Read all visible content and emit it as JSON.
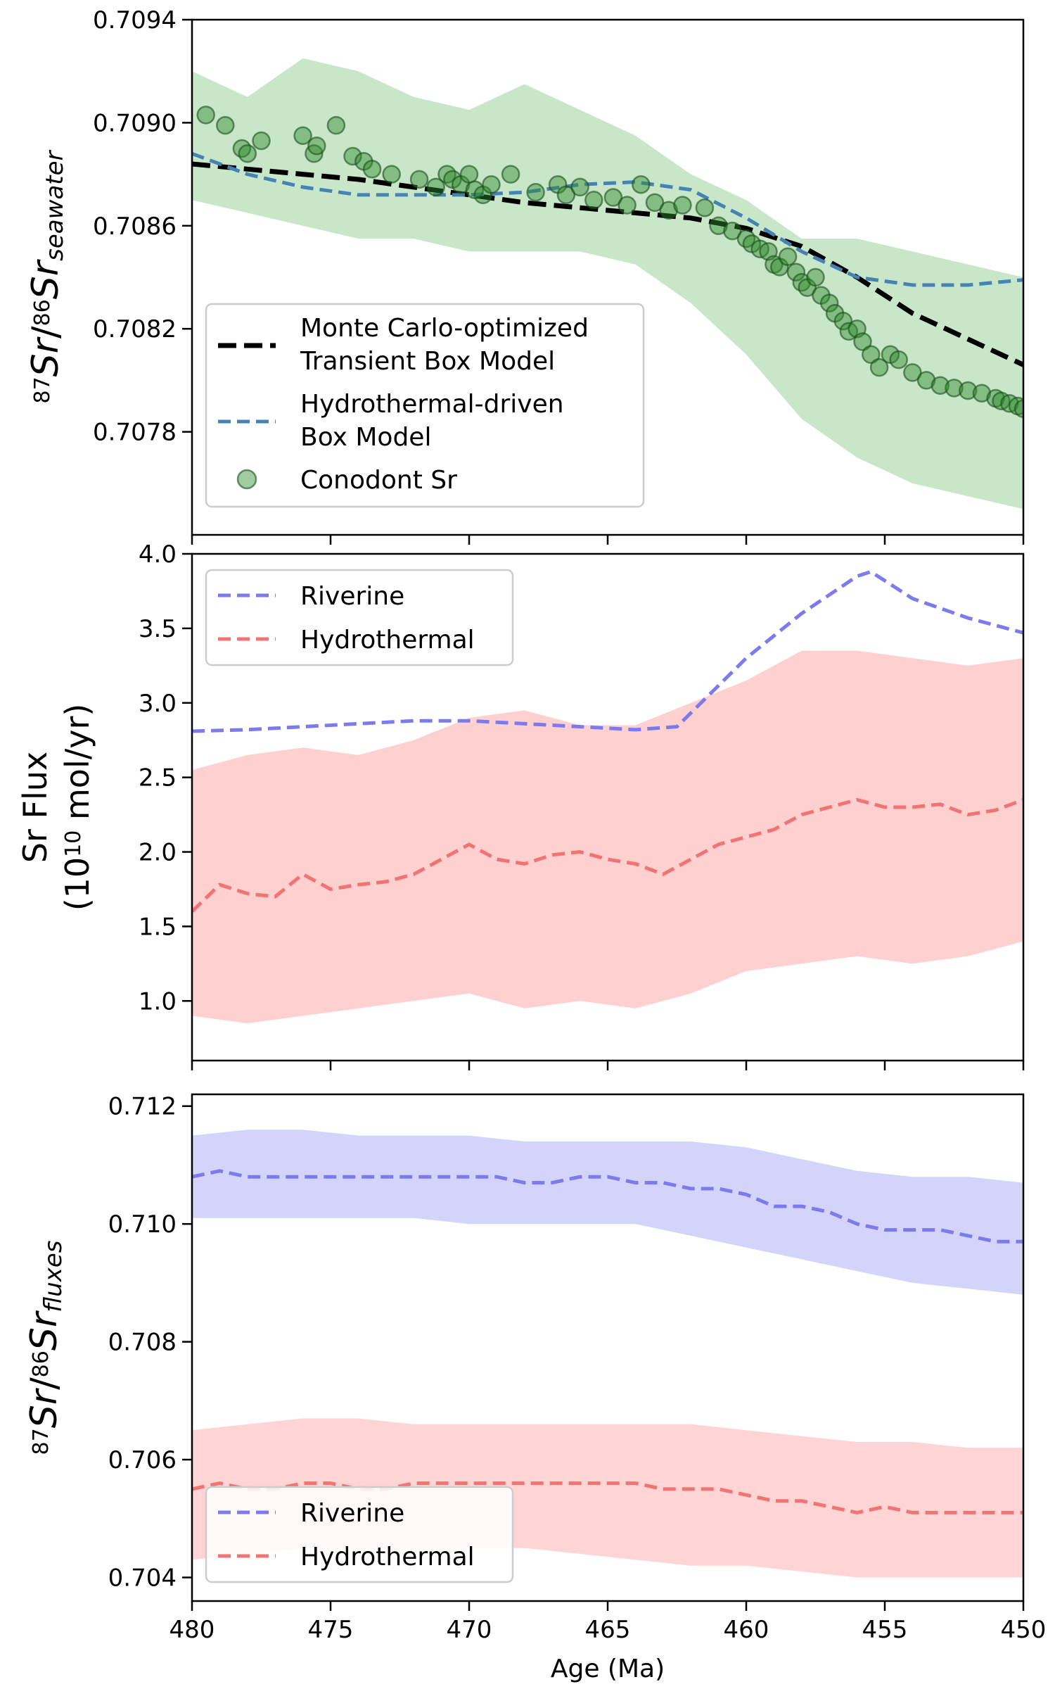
{
  "chart_data": [
    {
      "type": "line",
      "panel": "top",
      "ylabel_parts": {
        "sup1": "87",
        "sr1": "Sr",
        "slash": "/",
        "sup2": "86",
        "sr2": "Sr",
        "sub": "seawater"
      },
      "xlim": [
        480,
        450
      ],
      "ylim": [
        0.7074,
        0.7094
      ],
      "yticks": [
        0.7078,
        0.7082,
        0.7086,
        0.709,
        0.7094
      ],
      "ytick_labels": [
        "0.7078",
        "0.7082",
        "0.7086",
        "0.7090",
        "0.7094"
      ],
      "legend": {
        "placement": "lower-left",
        "entries": [
          {
            "line1": "Monte Carlo-optimized",
            "line2": "Transient Box Model"
          },
          {
            "line1": "Hydrothermal-driven",
            "line2": "Box Model"
          },
          {
            "line1": "Conodont Sr",
            "line2": ""
          }
        ]
      },
      "colors": {
        "mc": "#000000",
        "hydro": "#4682b4",
        "points": "#2e8b2e",
        "band": "#c8e6c8"
      },
      "band": {
        "x": [
          480,
          478,
          476,
          474,
          472,
          470,
          468,
          466,
          464,
          462,
          460,
          458,
          456,
          454,
          452,
          450
        ],
        "upper": [
          0.7092,
          0.7091,
          0.70925,
          0.7092,
          0.7091,
          0.70905,
          0.70915,
          0.70905,
          0.70895,
          0.7088,
          0.7087,
          0.70855,
          0.70855,
          0.7085,
          0.70845,
          0.7084
        ],
        "lower": [
          0.7087,
          0.70865,
          0.7086,
          0.70855,
          0.70855,
          0.7085,
          0.7085,
          0.7085,
          0.70845,
          0.7083,
          0.7081,
          0.70785,
          0.7077,
          0.7076,
          0.70755,
          0.7075
        ]
      },
      "series": [
        {
          "key": "mc",
          "x": [
            480,
            478,
            476,
            474,
            472,
            470,
            468,
            466,
            464,
            462,
            460,
            458,
            456,
            454,
            452,
            450
          ],
          "y": [
            0.70884,
            0.70882,
            0.7088,
            0.70878,
            0.70875,
            0.70872,
            0.70869,
            0.70867,
            0.70865,
            0.70863,
            0.70859,
            0.70852,
            0.7084,
            0.70826,
            0.70816,
            0.70806
          ]
        },
        {
          "key": "hydro",
          "x": [
            480,
            478,
            476,
            474,
            472,
            470,
            468,
            466,
            464,
            462,
            460,
            458,
            456,
            454,
            452,
            450
          ],
          "y": [
            0.70888,
            0.7088,
            0.70875,
            0.70872,
            0.70872,
            0.70872,
            0.70873,
            0.70876,
            0.70877,
            0.70874,
            0.70863,
            0.7085,
            0.7084,
            0.70837,
            0.70837,
            0.70839
          ]
        }
      ],
      "points": {
        "x": [
          479.5,
          478.8,
          478.2,
          478.0,
          477.5,
          476.0,
          475.6,
          475.5,
          474.8,
          474.2,
          473.8,
          473.5,
          472.8,
          471.8,
          471.2,
          470.8,
          470.6,
          470.3,
          470.0,
          469.8,
          469.5,
          469.2,
          468.5,
          467.6,
          466.8,
          466.5,
          466.0,
          465.5,
          464.8,
          464.3,
          463.8,
          463.3,
          462.8,
          462.3,
          461.5,
          461.0,
          460.5,
          460.0,
          459.8,
          459.5,
          459.2,
          459.0,
          458.8,
          458.5,
          458.2,
          458.0,
          457.8,
          457.5,
          457.3,
          457.0,
          456.8,
          456.5,
          456.3,
          456.0,
          455.8,
          455.5,
          455.2,
          454.8,
          454.5,
          454.0,
          453.5,
          453.0,
          452.5,
          452.0,
          451.5,
          451.0,
          450.8,
          450.5,
          450.2,
          450.0
        ],
        "y": [
          0.70903,
          0.70899,
          0.7089,
          0.70888,
          0.70893,
          0.70895,
          0.70888,
          0.70891,
          0.70899,
          0.70887,
          0.70885,
          0.70882,
          0.7088,
          0.70878,
          0.70875,
          0.7088,
          0.70878,
          0.70876,
          0.7088,
          0.70874,
          0.70872,
          0.70876,
          0.7088,
          0.70873,
          0.70876,
          0.70872,
          0.70875,
          0.7087,
          0.70871,
          0.70868,
          0.70876,
          0.70869,
          0.70866,
          0.70868,
          0.70867,
          0.7086,
          0.70858,
          0.70855,
          0.70853,
          0.70851,
          0.7085,
          0.70845,
          0.70844,
          0.70848,
          0.70842,
          0.70838,
          0.70836,
          0.7084,
          0.70833,
          0.7083,
          0.70826,
          0.70823,
          0.70819,
          0.7082,
          0.70815,
          0.7081,
          0.70805,
          0.7081,
          0.70808,
          0.70803,
          0.708,
          0.70798,
          0.70797,
          0.70796,
          0.70795,
          0.70793,
          0.70792,
          0.70791,
          0.7079,
          0.70789
        ]
      }
    },
    {
      "type": "line",
      "panel": "middle",
      "ylabel_line1": "Sr Flux",
      "ylabel_line2_parts": {
        "pre": "(10",
        "sup": "10",
        "post": " mol/yr)"
      },
      "xlim": [
        480,
        450
      ],
      "ylim": [
        0.6,
        4.0
      ],
      "yticks": [
        1.0,
        1.5,
        2.0,
        2.5,
        3.0,
        3.5,
        4.0
      ],
      "ytick_labels": [
        "1.0",
        "1.5",
        "2.0",
        "2.5",
        "3.0",
        "3.5",
        "4.0"
      ],
      "legend": {
        "placement": "top-left",
        "entries": [
          "Riverine",
          "Hydrothermal"
        ]
      },
      "colors": {
        "riverine": "#7b7bee",
        "hydrothermal": "#f07474",
        "band": "#ffd0d0"
      },
      "band": {
        "x": [
          480,
          478,
          476,
          474,
          472,
          470,
          468,
          466,
          464,
          462,
          460,
          458,
          456,
          454,
          452,
          450
        ],
        "upper": [
          2.55,
          2.65,
          2.7,
          2.65,
          2.75,
          2.9,
          2.95,
          2.85,
          2.85,
          3.0,
          3.15,
          3.35,
          3.35,
          3.3,
          3.25,
          3.3
        ],
        "lower": [
          0.9,
          0.85,
          0.9,
          0.95,
          1.0,
          1.05,
          0.95,
          1.0,
          0.95,
          1.05,
          1.2,
          1.25,
          1.3,
          1.25,
          1.3,
          1.4
        ]
      },
      "series": [
        {
          "name": "Riverine",
          "key": "riverine",
          "x": [
            480,
            478,
            476,
            474,
            472,
            470,
            468,
            466,
            464,
            462.5,
            460,
            458,
            456,
            455.5,
            454,
            452,
            450
          ],
          "y": [
            2.81,
            2.82,
            2.84,
            2.86,
            2.88,
            2.88,
            2.86,
            2.84,
            2.82,
            2.84,
            3.3,
            3.6,
            3.85,
            3.88,
            3.7,
            3.57,
            3.47
          ]
        },
        {
          "name": "Hydrothermal",
          "key": "hydrothermal",
          "x": [
            480,
            479,
            478,
            477,
            476,
            475,
            474,
            473,
            472,
            471,
            470,
            469,
            468,
            467,
            466,
            465,
            464,
            463,
            462,
            461,
            460,
            459,
            458,
            457,
            456,
            455,
            454,
            453,
            452,
            451,
            450
          ],
          "y": [
            1.6,
            1.78,
            1.72,
            1.7,
            1.85,
            1.75,
            1.78,
            1.8,
            1.85,
            1.95,
            2.05,
            1.95,
            1.92,
            1.98,
            2.0,
            1.95,
            1.92,
            1.85,
            1.95,
            2.05,
            2.1,
            2.15,
            2.25,
            2.3,
            2.35,
            2.3,
            2.3,
            2.32,
            2.25,
            2.28,
            2.35
          ]
        }
      ]
    },
    {
      "type": "line",
      "panel": "bottom",
      "ylabel_parts": {
        "sup1": "87",
        "sr1": "Sr",
        "slash": "/",
        "sup2": "86",
        "sr2": "Sr",
        "sub": "fluxes"
      },
      "xlabel": "Age (Ma)",
      "xlim": [
        480,
        450
      ],
      "xticks": [
        480,
        475,
        470,
        465,
        460,
        455,
        450
      ],
      "xtick_labels": [
        "480",
        "475",
        "470",
        "465",
        "460",
        "455",
        "450"
      ],
      "ylim": [
        0.7036,
        0.7122
      ],
      "yticks": [
        0.704,
        0.706,
        0.708,
        0.71,
        0.712
      ],
      "ytick_labels": [
        "0.704",
        "0.706",
        "0.708",
        "0.710",
        "0.712"
      ],
      "legend": {
        "placement": "lower-left",
        "entries": [
          "Riverine",
          "Hydrothermal"
        ]
      },
      "colors": {
        "riverine": "#7b7bee",
        "hydrothermal": "#f07474",
        "riv_band": "#d4d4fa",
        "hyd_band": "#ffd4d4"
      },
      "riverine_band": {
        "x": [
          480,
          478,
          476,
          474,
          472,
          470,
          468,
          466,
          464,
          462,
          460,
          458,
          456,
          454,
          452,
          450
        ],
        "upper": [
          0.7115,
          0.7116,
          0.7116,
          0.7115,
          0.7115,
          0.7115,
          0.7114,
          0.7114,
          0.7114,
          0.7114,
          0.7113,
          0.7111,
          0.7109,
          0.7108,
          0.7108,
          0.7107
        ],
        "lower": [
          0.7101,
          0.7101,
          0.7101,
          0.7101,
          0.7101,
          0.71,
          0.71,
          0.71,
          0.71,
          0.7098,
          0.7096,
          0.7094,
          0.7092,
          0.709,
          0.7089,
          0.7088
        ]
      },
      "hydrothermal_band": {
        "x": [
          480,
          478,
          476,
          474,
          472,
          470,
          468,
          466,
          464,
          462,
          460,
          458,
          456,
          454,
          452,
          450
        ],
        "upper": [
          0.7065,
          0.7066,
          0.7067,
          0.7067,
          0.7066,
          0.7066,
          0.7066,
          0.7066,
          0.7066,
          0.7066,
          0.7065,
          0.7064,
          0.7063,
          0.7063,
          0.7062,
          0.7062
        ],
        "lower": [
          0.7043,
          0.7044,
          0.7045,
          0.7045,
          0.7045,
          0.7045,
          0.7045,
          0.7044,
          0.7043,
          0.7042,
          0.7042,
          0.7041,
          0.704,
          0.704,
          0.704,
          0.704
        ]
      },
      "series": [
        {
          "name": "Riverine",
          "key": "riverine",
          "x": [
            480,
            479,
            478,
            477,
            476,
            475,
            474,
            473,
            472,
            471,
            470,
            469,
            468,
            467,
            466,
            465,
            464,
            463,
            462,
            461,
            460,
            459,
            458,
            457,
            456,
            455,
            454,
            453,
            452,
            451,
            450
          ],
          "y": [
            0.7108,
            0.7109,
            0.7108,
            0.7108,
            0.7108,
            0.7108,
            0.7108,
            0.7108,
            0.7108,
            0.7108,
            0.7108,
            0.7108,
            0.7107,
            0.7107,
            0.7108,
            0.7108,
            0.7107,
            0.7107,
            0.7106,
            0.7106,
            0.7105,
            0.7103,
            0.7103,
            0.7102,
            0.71,
            0.7099,
            0.7099,
            0.7099,
            0.7098,
            0.7097,
            0.7097
          ]
        },
        {
          "name": "Hydrothermal",
          "key": "hydrothermal",
          "x": [
            480,
            479,
            478,
            477,
            476,
            475,
            474,
            473,
            472,
            471,
            470,
            469,
            468,
            467,
            466,
            465,
            464,
            463,
            462,
            461,
            460,
            459,
            458,
            457,
            456,
            455,
            454,
            453,
            452,
            451,
            450
          ],
          "y": [
            0.7055,
            0.7056,
            0.7055,
            0.7055,
            0.7056,
            0.7056,
            0.7055,
            0.7055,
            0.7056,
            0.7056,
            0.7056,
            0.7056,
            0.7056,
            0.7056,
            0.7056,
            0.7056,
            0.7056,
            0.7055,
            0.7055,
            0.7055,
            0.7054,
            0.7053,
            0.7053,
            0.7052,
            0.7051,
            0.7052,
            0.7051,
            0.7051,
            0.7051,
            0.7051,
            0.7051
          ]
        }
      ]
    }
  ]
}
